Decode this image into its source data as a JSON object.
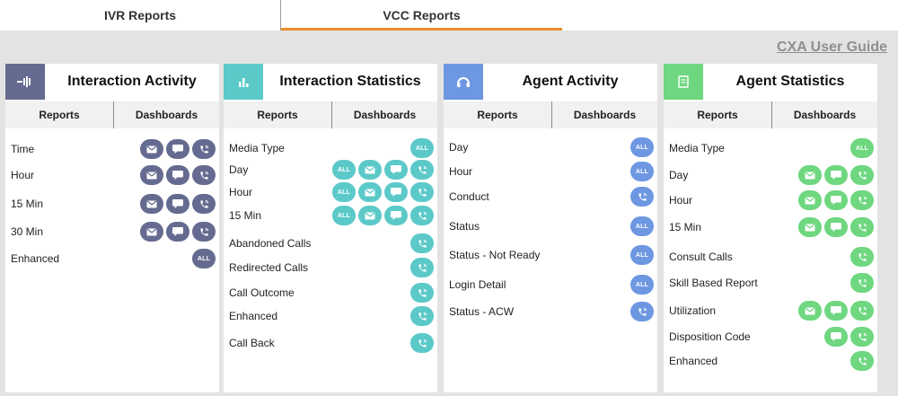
{
  "top_tabs": [
    {
      "label": "IVR Reports"
    },
    {
      "label": "VCC Reports"
    }
  ],
  "guide_link": "CXA User Guide",
  "colors": {
    "tab_underline": "#ef8d2b",
    "ia": "#656b90",
    "is": "#5cc9c9",
    "aa": "#6e97e2",
    "as": "#6ed77f"
  },
  "panels": [
    {
      "title": "Interaction Activity",
      "icon": "interaction-activity-icon",
      "tab_reports": "Reports",
      "tab_dashboards": "Dashboards",
      "rows": [
        {
          "label": "Time",
          "icons": [
            "email",
            "chat",
            "phone"
          ]
        },
        {
          "label": "Hour",
          "icons": [
            "email",
            "chat",
            "phone"
          ]
        },
        {
          "label": "15 Min",
          "icons": [
            "email",
            "chat",
            "phone"
          ]
        },
        {
          "label": "30 Min",
          "icons": [
            "email",
            "chat",
            "phone"
          ]
        },
        {
          "label": "Enhanced",
          "icons": [
            "all"
          ]
        }
      ]
    },
    {
      "title": "Interaction Statistics",
      "icon": "bar-chart-icon",
      "tab_reports": "Reports",
      "tab_dashboards": "Dashboards",
      "rows": [
        {
          "label": "Media Type",
          "icons": [
            "all"
          ]
        },
        {
          "label": "Day",
          "icons": [
            "all",
            "email",
            "chat",
            "phone"
          ]
        },
        {
          "label": "Hour",
          "icons": [
            "all",
            "email",
            "chat",
            "phone"
          ]
        },
        {
          "label": "15 Min",
          "icons": [
            "all",
            "email",
            "chat",
            "phone"
          ]
        },
        {
          "label": "Abandoned Calls",
          "icons": [
            "phone"
          ]
        },
        {
          "label": "Redirected Calls",
          "icons": [
            "phone"
          ]
        },
        {
          "label": "Call Outcome",
          "icons": [
            "phone"
          ]
        },
        {
          "label": "Enhanced",
          "icons": [
            "phone"
          ]
        },
        {
          "label": "Call Back",
          "icons": [
            "phone"
          ]
        }
      ]
    },
    {
      "title": "Agent Activity",
      "icon": "headset-icon",
      "tab_reports": "Reports",
      "tab_dashboards": "Dashboards",
      "rows": [
        {
          "label": "Day",
          "icons": [
            "all"
          ]
        },
        {
          "label": "Hour",
          "icons": [
            "all"
          ]
        },
        {
          "label": "Conduct",
          "icons": [
            "phone"
          ]
        },
        {
          "label": "Status",
          "icons": [
            "all"
          ]
        },
        {
          "label": "Status - Not Ready",
          "icons": [
            "all"
          ]
        },
        {
          "label": "Login Detail",
          "icons": [
            "all"
          ]
        },
        {
          "label": "Status - ACW",
          "icons": [
            "phone"
          ]
        }
      ]
    },
    {
      "title": "Agent Statistics",
      "icon": "document-icon",
      "tab_reports": "Reports",
      "tab_dashboards": "Dashboards",
      "rows": [
        {
          "label": "Media Type",
          "icons": [
            "all"
          ]
        },
        {
          "label": "Day",
          "icons": [
            "email",
            "chat",
            "phone"
          ]
        },
        {
          "label": "Hour",
          "icons": [
            "email",
            "chat",
            "phone"
          ]
        },
        {
          "label": "15 Min",
          "icons": [
            "email",
            "chat",
            "phone"
          ]
        },
        {
          "label": "Consult Calls",
          "icons": [
            "phone"
          ]
        },
        {
          "label": "Skill Based Report",
          "icons": [
            "phone"
          ]
        },
        {
          "label": "Utilization",
          "icons": [
            "email",
            "chat",
            "phone"
          ]
        },
        {
          "label": "Disposition Code",
          "icons": [
            "chat",
            "phone"
          ]
        },
        {
          "label": "Enhanced",
          "icons": [
            "phone"
          ]
        }
      ]
    }
  ],
  "all_label": "ALL"
}
